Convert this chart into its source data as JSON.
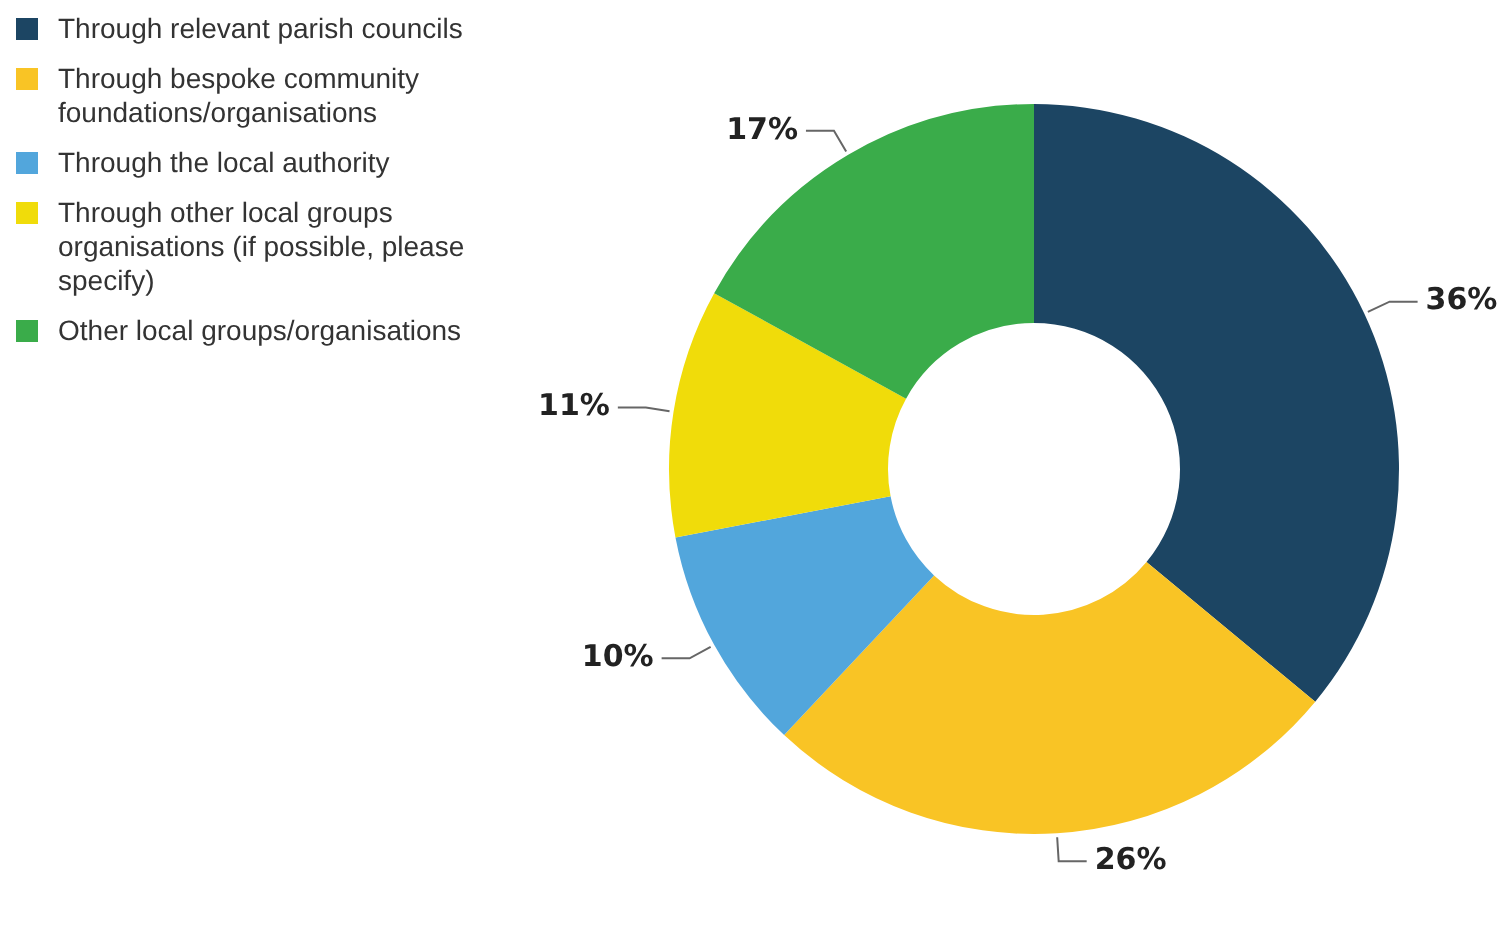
{
  "chart_data": {
    "type": "donut",
    "categories": [
      "Through relevant parish councils",
      "Through bespoke community foundations/organisations",
      "Through the local authority",
      "Through other local groups organisations (if possible, please specify)",
      "Other local groups/organisations"
    ],
    "values": [
      36,
      26,
      10,
      11,
      17
    ],
    "colors": [
      "#1c4563",
      "#f9c425",
      "#52a6dc",
      "#f0dc0a",
      "#3aac4a"
    ],
    "value_labels": [
      "36%",
      "26%",
      "10%",
      "11%",
      "17%"
    ],
    "legend": "top left"
  }
}
